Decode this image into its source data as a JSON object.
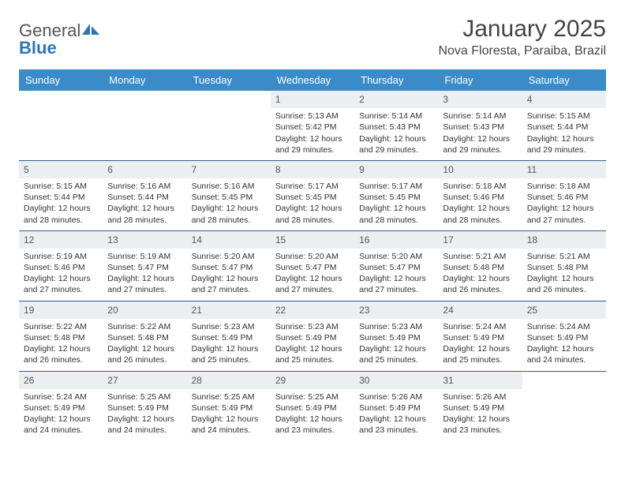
{
  "logo": {
    "part1": "General",
    "part2": "Blue"
  },
  "title": "January 2025",
  "location": "Nova Floresta, Paraiba, Brazil",
  "colors": {
    "header_bg": "#3b8bc8",
    "header_fg": "#ffffff",
    "daynum_bg": "#eceff1",
    "row_border": "#2f5f8f",
    "logo_accent": "#2e75b6"
  },
  "weekdays": [
    "Sunday",
    "Monday",
    "Tuesday",
    "Wednesday",
    "Thursday",
    "Friday",
    "Saturday"
  ],
  "weeks": [
    [
      null,
      null,
      null,
      {
        "n": "1",
        "sr": "5:13 AM",
        "ss": "5:42 PM",
        "dl": "12 hours and 29 minutes."
      },
      {
        "n": "2",
        "sr": "5:14 AM",
        "ss": "5:43 PM",
        "dl": "12 hours and 29 minutes."
      },
      {
        "n": "3",
        "sr": "5:14 AM",
        "ss": "5:43 PM",
        "dl": "12 hours and 29 minutes."
      },
      {
        "n": "4",
        "sr": "5:15 AM",
        "ss": "5:44 PM",
        "dl": "12 hours and 29 minutes."
      }
    ],
    [
      {
        "n": "5",
        "sr": "5:15 AM",
        "ss": "5:44 PM",
        "dl": "12 hours and 28 minutes."
      },
      {
        "n": "6",
        "sr": "5:16 AM",
        "ss": "5:44 PM",
        "dl": "12 hours and 28 minutes."
      },
      {
        "n": "7",
        "sr": "5:16 AM",
        "ss": "5:45 PM",
        "dl": "12 hours and 28 minutes."
      },
      {
        "n": "8",
        "sr": "5:17 AM",
        "ss": "5:45 PM",
        "dl": "12 hours and 28 minutes."
      },
      {
        "n": "9",
        "sr": "5:17 AM",
        "ss": "5:45 PM",
        "dl": "12 hours and 28 minutes."
      },
      {
        "n": "10",
        "sr": "5:18 AM",
        "ss": "5:46 PM",
        "dl": "12 hours and 28 minutes."
      },
      {
        "n": "11",
        "sr": "5:18 AM",
        "ss": "5:46 PM",
        "dl": "12 hours and 27 minutes."
      }
    ],
    [
      {
        "n": "12",
        "sr": "5:19 AM",
        "ss": "5:46 PM",
        "dl": "12 hours and 27 minutes."
      },
      {
        "n": "13",
        "sr": "5:19 AM",
        "ss": "5:47 PM",
        "dl": "12 hours and 27 minutes."
      },
      {
        "n": "14",
        "sr": "5:20 AM",
        "ss": "5:47 PM",
        "dl": "12 hours and 27 minutes."
      },
      {
        "n": "15",
        "sr": "5:20 AM",
        "ss": "5:47 PM",
        "dl": "12 hours and 27 minutes."
      },
      {
        "n": "16",
        "sr": "5:20 AM",
        "ss": "5:47 PM",
        "dl": "12 hours and 27 minutes."
      },
      {
        "n": "17",
        "sr": "5:21 AM",
        "ss": "5:48 PM",
        "dl": "12 hours and 26 minutes."
      },
      {
        "n": "18",
        "sr": "5:21 AM",
        "ss": "5:48 PM",
        "dl": "12 hours and 26 minutes."
      }
    ],
    [
      {
        "n": "19",
        "sr": "5:22 AM",
        "ss": "5:48 PM",
        "dl": "12 hours and 26 minutes."
      },
      {
        "n": "20",
        "sr": "5:22 AM",
        "ss": "5:48 PM",
        "dl": "12 hours and 26 minutes."
      },
      {
        "n": "21",
        "sr": "5:23 AM",
        "ss": "5:49 PM",
        "dl": "12 hours and 25 minutes."
      },
      {
        "n": "22",
        "sr": "5:23 AM",
        "ss": "5:49 PM",
        "dl": "12 hours and 25 minutes."
      },
      {
        "n": "23",
        "sr": "5:23 AM",
        "ss": "5:49 PM",
        "dl": "12 hours and 25 minutes."
      },
      {
        "n": "24",
        "sr": "5:24 AM",
        "ss": "5:49 PM",
        "dl": "12 hours and 25 minutes."
      },
      {
        "n": "25",
        "sr": "5:24 AM",
        "ss": "5:49 PM",
        "dl": "12 hours and 24 minutes."
      }
    ],
    [
      {
        "n": "26",
        "sr": "5:24 AM",
        "ss": "5:49 PM",
        "dl": "12 hours and 24 minutes."
      },
      {
        "n": "27",
        "sr": "5:25 AM",
        "ss": "5:49 PM",
        "dl": "12 hours and 24 minutes."
      },
      {
        "n": "28",
        "sr": "5:25 AM",
        "ss": "5:49 PM",
        "dl": "12 hours and 24 minutes."
      },
      {
        "n": "29",
        "sr": "5:25 AM",
        "ss": "5:49 PM",
        "dl": "12 hours and 23 minutes."
      },
      {
        "n": "30",
        "sr": "5:26 AM",
        "ss": "5:49 PM",
        "dl": "12 hours and 23 minutes."
      },
      {
        "n": "31",
        "sr": "5:26 AM",
        "ss": "5:49 PM",
        "dl": "12 hours and 23 minutes."
      },
      null
    ]
  ],
  "labels": {
    "sunrise": "Sunrise:",
    "sunset": "Sunset:",
    "daylight": "Daylight:"
  }
}
